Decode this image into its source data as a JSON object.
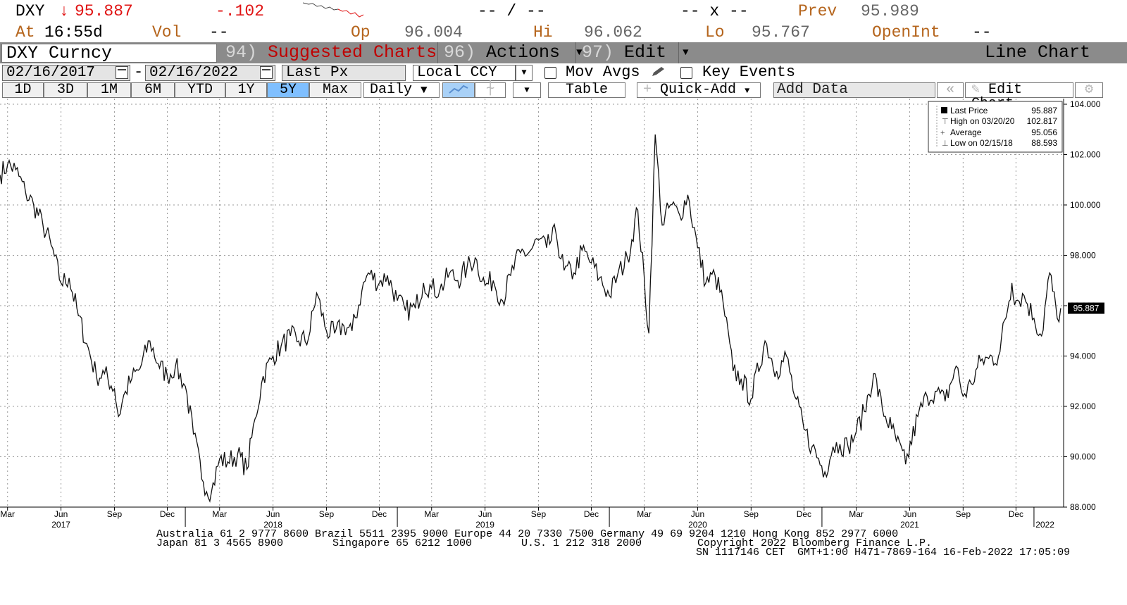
{
  "quote": {
    "ticker": "DXY",
    "arrow": "↓",
    "last": "95.887",
    "change": "-.102",
    "bidask": "-- / --",
    "size": "-- x --",
    "prev_label": "Prev",
    "prev": "95.989",
    "at_label": "At",
    "time": "16:55d",
    "vol_label": "Vol",
    "vol": "--",
    "open_label": "Op",
    "open": "96.004",
    "hi_label": "Hi",
    "hi": "96.062",
    "lo_label": "Lo",
    "lo": "95.767",
    "oi_label": "OpenInt",
    "oi": "--"
  },
  "menu": {
    "security": "DXY Curncy",
    "suggested_num": "94)",
    "suggested_label": "Suggested Charts",
    "actions_num": "96)",
    "actions_label": "Actions",
    "edit_num": "97)",
    "edit_label": "Edit",
    "chart_type": "Line Chart"
  },
  "controls": {
    "start_date": "02/16/2017",
    "end_date": "02/16/2022",
    "field": "Last Px",
    "currency": "Local CCY",
    "mov_avgs": "Mov Avgs",
    "key_events": "Key Events"
  },
  "ranges": {
    "buttons": [
      "1D",
      "3D",
      "1M",
      "6M",
      "YTD",
      "1Y",
      "5Y",
      "Max"
    ],
    "active": "5Y",
    "frequency": "Daily",
    "table": "Table",
    "quick_add": "Quick-Add",
    "add_data": "Add Data",
    "edit_chart": "Edit Chart"
  },
  "legend": {
    "rows": [
      {
        "label": "Last Price",
        "value": "95.887"
      },
      {
        "label": "High on 03/20/20",
        "value": "102.817"
      },
      {
        "label": "Average",
        "value": "95.056"
      },
      {
        "label": "Low on 02/15/18",
        "value": "88.593"
      }
    ]
  },
  "chart_data": {
    "type": "line",
    "series": [
      {
        "name": "Last Price",
        "x": [
          "2017-02-16",
          "2017-03-01",
          "2017-03-15",
          "2017-04-01",
          "2017-04-15",
          "2017-05-01",
          "2017-05-15",
          "2017-06-01",
          "2017-06-15",
          "2017-07-01",
          "2017-07-15",
          "2017-08-01",
          "2017-08-15",
          "2017-09-01",
          "2017-09-08",
          "2017-09-20",
          "2017-10-01",
          "2017-10-15",
          "2017-11-01",
          "2017-11-15",
          "2017-12-01",
          "2017-12-15",
          "2018-01-01",
          "2018-01-15",
          "2018-02-01",
          "2018-02-15",
          "2018-03-01",
          "2018-03-15",
          "2018-04-01",
          "2018-04-17",
          "2018-05-01",
          "2018-05-15",
          "2018-06-01",
          "2018-06-15",
          "2018-07-01",
          "2018-07-15",
          "2018-08-01",
          "2018-08-15",
          "2018-09-01",
          "2018-09-15",
          "2018-10-01",
          "2018-10-15",
          "2018-11-01",
          "2018-11-12",
          "2018-12-01",
          "2018-12-15",
          "2019-01-01",
          "2019-01-15",
          "2019-02-01",
          "2019-02-15",
          "2019-03-01",
          "2019-03-15",
          "2019-04-01",
          "2019-04-15",
          "2019-05-01",
          "2019-05-15",
          "2019-06-01",
          "2019-06-15",
          "2019-07-01",
          "2019-07-15",
          "2019-08-01",
          "2019-08-15",
          "2019-09-01",
          "2019-09-15",
          "2019-10-01",
          "2019-10-15",
          "2019-11-01",
          "2019-11-15",
          "2019-12-01",
          "2019-12-15",
          "2020-01-01",
          "2020-01-15",
          "2020-02-01",
          "2020-02-19",
          "2020-03-09",
          "2020-03-20",
          "2020-04-01",
          "2020-04-15",
          "2020-05-01",
          "2020-05-15",
          "2020-06-01",
          "2020-06-15",
          "2020-07-01",
          "2020-07-15",
          "2020-08-01",
          "2020-08-15",
          "2020-09-01",
          "2020-09-25",
          "2020-10-15",
          "2020-11-01",
          "2020-11-15",
          "2020-12-01",
          "2020-12-15",
          "2021-01-06",
          "2021-01-20",
          "2021-02-01",
          "2021-02-15",
          "2021-03-01",
          "2021-03-15",
          "2021-03-31",
          "2021-04-15",
          "2021-05-01",
          "2021-05-25",
          "2021-06-15",
          "2021-07-01",
          "2021-07-15",
          "2021-08-01",
          "2021-08-20",
          "2021-09-01",
          "2021-09-15",
          "2021-10-01",
          "2021-10-15",
          "2021-11-01",
          "2021-11-24",
          "2021-12-01",
          "2021-12-15",
          "2022-01-01",
          "2022-01-14",
          "2022-01-28",
          "2022-02-10",
          "2022-02-16"
        ],
        "values": [
          101.2,
          101.6,
          101.4,
          100.5,
          100.0,
          99.2,
          98.4,
          96.9,
          97.1,
          95.6,
          94.5,
          93.2,
          93.3,
          92.7,
          91.6,
          92.6,
          93.1,
          93.5,
          94.6,
          93.7,
          93.2,
          93.6,
          92.8,
          90.9,
          89.0,
          88.6,
          89.9,
          89.8,
          90.1,
          89.5,
          91.5,
          93.2,
          94.0,
          94.4,
          94.8,
          94.6,
          94.7,
          96.5,
          95.0,
          94.9,
          95.2,
          95.0,
          96.6,
          97.3,
          96.9,
          97.2,
          96.2,
          95.8,
          95.9,
          96.9,
          96.7,
          96.6,
          97.3,
          97.0,
          97.5,
          97.9,
          96.8,
          97.0,
          96.2,
          97.2,
          98.1,
          98.1,
          98.6,
          98.3,
          98.9,
          97.4,
          97.3,
          98.2,
          97.7,
          97.1,
          96.4,
          97.2,
          97.9,
          99.8,
          94.9,
          102.8,
          99.2,
          100.0,
          99.6,
          100.4,
          98.3,
          96.9,
          97.2,
          96.1,
          93.4,
          93.1,
          92.3,
          94.6,
          93.4,
          94.0,
          92.4,
          91.1,
          90.4,
          89.4,
          90.4,
          90.5,
          90.4,
          91.0,
          91.8,
          93.3,
          91.9,
          91.1,
          89.7,
          91.6,
          92.4,
          92.6,
          92.2,
          93.6,
          92.4,
          92.9,
          93.8,
          93.9,
          94.0,
          96.9,
          96.2,
          96.4,
          95.5,
          94.8,
          97.3,
          95.5,
          95.9
        ]
      }
    ],
    "ylim": [
      88.0,
      104.0
    ],
    "y_ticks": [
      "88.000",
      "90.000",
      "92.000",
      "94.000",
      "96.000",
      "98.000",
      "100.000",
      "102.000",
      "104.000"
    ],
    "x_month_labels": [
      {
        "date": "2017-03-01",
        "label": "Mar"
      },
      {
        "date": "2017-06-01",
        "label": "Jun"
      },
      {
        "date": "2017-09-01",
        "label": "Sep"
      },
      {
        "date": "2017-12-01",
        "label": "Dec"
      },
      {
        "date": "2018-03-01",
        "label": "Mar"
      },
      {
        "date": "2018-06-01",
        "label": "Jun"
      },
      {
        "date": "2018-09-01",
        "label": "Sep"
      },
      {
        "date": "2018-12-01",
        "label": "Dec"
      },
      {
        "date": "2019-03-01",
        "label": "Mar"
      },
      {
        "date": "2019-06-01",
        "label": "Jun"
      },
      {
        "date": "2019-09-01",
        "label": "Sep"
      },
      {
        "date": "2019-12-01",
        "label": "Dec"
      },
      {
        "date": "2020-03-01",
        "label": "Mar"
      },
      {
        "date": "2020-06-01",
        "label": "Jun"
      },
      {
        "date": "2020-09-01",
        "label": "Sep"
      },
      {
        "date": "2020-12-01",
        "label": "Dec"
      },
      {
        "date": "2021-03-01",
        "label": "Mar"
      },
      {
        "date": "2021-06-01",
        "label": "Jun"
      },
      {
        "date": "2021-09-01",
        "label": "Sep"
      },
      {
        "date": "2021-12-01",
        "label": "Dec"
      }
    ],
    "x_year_labels": [
      {
        "date": "2017-06-01",
        "label": "2017"
      },
      {
        "date": "2018-06-01",
        "label": "2018"
      },
      {
        "date": "2019-06-01",
        "label": "2019"
      },
      {
        "date": "2020-06-01",
        "label": "2020"
      },
      {
        "date": "2021-06-01",
        "label": "2021"
      },
      {
        "date": "2022-01-20",
        "label": "2022"
      }
    ],
    "x_year_boundaries": [
      "2018-01-01",
      "2019-01-01",
      "2020-01-01",
      "2021-01-01",
      "2022-01-01"
    ],
    "last_value_label": "95.887",
    "grid": true,
    "legend_position": "top-right"
  },
  "footer": {
    "line1": "Australia 61 2 9777 8600 Brazil 5511 2395 9000 Europe 44 20 7330 7500 Germany 49 69 9204 1210 Hong Kong 852 2977 6000",
    "line2a": "Japan 81 3 4565 8900",
    "line2b": "Singapore 65 6212 1000",
    "line2c": "U.S. 1 212 318 2000",
    "line2d": "Copyright 2022 Bloomberg Finance L.P.",
    "line3": "SN 1117146 CET  GMT+1:00 H471-7869-164 16-Feb-2022 17:05:09"
  }
}
